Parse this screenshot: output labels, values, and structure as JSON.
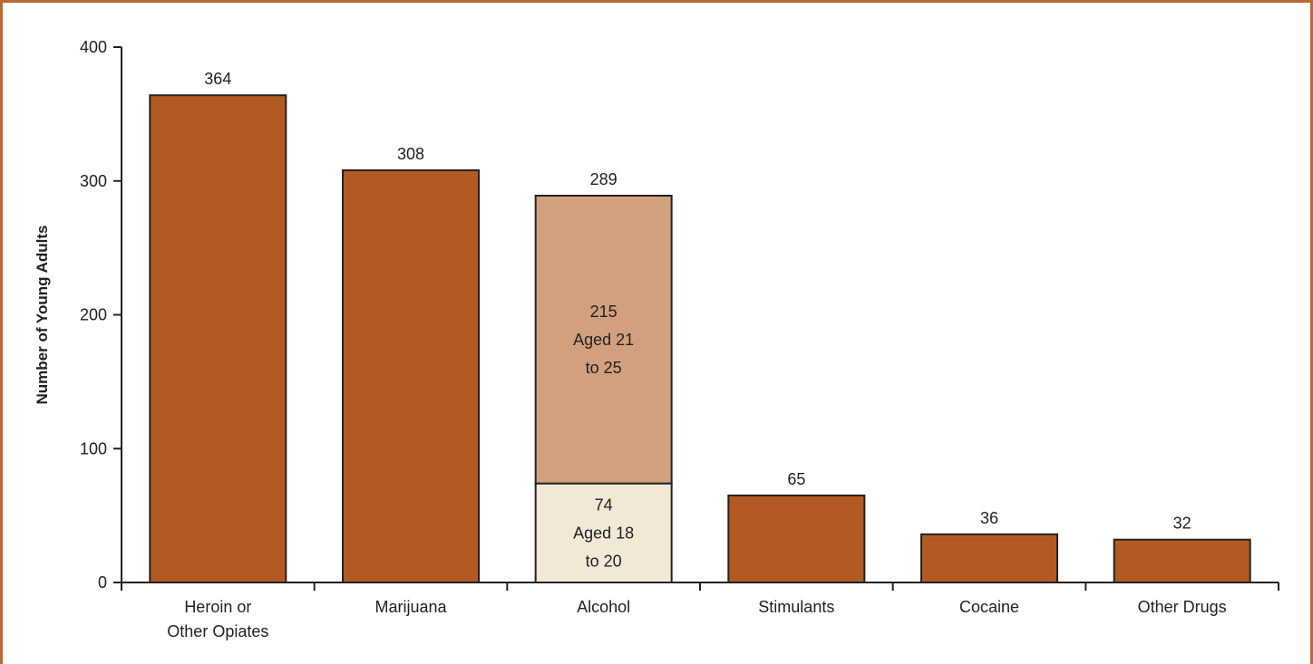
{
  "chart_data": {
    "type": "bar",
    "title": "",
    "xlabel": "",
    "ylabel": "Number of Young Adults",
    "ylim": [
      0,
      400
    ],
    "yticks": [
      0,
      100,
      200,
      300,
      400
    ],
    "grid": false,
    "categories": [
      [
        "Heroin or",
        "Other Opiates"
      ],
      [
        "Marijuana"
      ],
      [
        "Alcohol"
      ],
      [
        "Stimulants"
      ],
      [
        "Cocaine"
      ],
      [
        "Other Drugs"
      ]
    ],
    "values": [
      364,
      308,
      289,
      65,
      36,
      32
    ],
    "stacked_breakdown": {
      "category": "Alcohol",
      "segments": [
        {
          "value": 74,
          "label_lines": [
            "Aged 18",
            "to 20"
          ],
          "color": "#f2e8d5"
        },
        {
          "value": 215,
          "label_lines": [
            "Aged 21",
            "to 25"
          ],
          "color": "#d2a07c"
        }
      ]
    },
    "colors": {
      "bar": "#b35a22",
      "frame": "#b96a35",
      "axis": "#222222"
    }
  }
}
